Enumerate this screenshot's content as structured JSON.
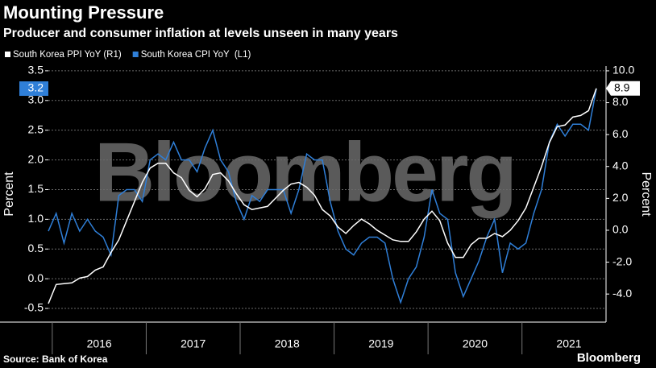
{
  "chart_data": {
    "type": "line",
    "title": "Mounting Pressure",
    "subtitle": "Producer and consumer inflation at levels unseen in many years",
    "ylabel": "Percent",
    "y2label": "Percent",
    "watermark": "Bloomberg",
    "source": "Source: Bank of Korea",
    "logo": "Bloomberg",
    "categories": [
      null,
      null,
      null,
      null,
      null,
      null,
      null,
      "2016",
      null,
      null,
      null,
      null,
      null,
      null,
      null,
      null,
      null,
      null,
      null,
      "2017",
      null,
      null,
      null,
      null,
      null,
      null,
      null,
      null,
      null,
      null,
      null,
      "2018",
      null,
      null,
      null,
      null,
      null,
      null,
      null,
      null,
      null,
      null,
      null,
      "2019",
      null,
      null,
      null,
      null,
      null,
      null,
      null,
      null,
      null,
      null,
      null,
      "2020",
      null,
      null,
      null,
      null,
      null,
      null,
      null,
      null,
      null,
      null,
      null,
      "2021",
      null,
      null,
      null
    ],
    "series": [
      {
        "name": "South Korea CPI YoY  (L1)",
        "color": "#2f7fd8",
        "axis": "y",
        "values": [
          0.8,
          1.1,
          0.6,
          1.1,
          0.8,
          1.0,
          0.8,
          0.7,
          0.4,
          1.4,
          1.5,
          1.5,
          1.3,
          2.0,
          2.1,
          2.0,
          2.3,
          2.0,
          2.0,
          1.8,
          2.2,
          2.5,
          2.0,
          1.8,
          1.3,
          1.0,
          1.4,
          1.3,
          1.5,
          1.5,
          1.5,
          1.1,
          1.5,
          2.1,
          2.0,
          2.0,
          1.3,
          0.8,
          0.5,
          0.4,
          0.6,
          0.7,
          0.7,
          0.6,
          0.0,
          -0.4,
          0.0,
          0.2,
          0.7,
          1.5,
          1.1,
          1.0,
          0.1,
          -0.3,
          0.0,
          0.3,
          0.7,
          1.0,
          0.1,
          0.6,
          0.5,
          0.6,
          1.1,
          1.5,
          2.3,
          2.6,
          2.4,
          2.6,
          2.6,
          2.5,
          3.2
        ]
      },
      {
        "name": "South Korea PPI YoY (R1)",
        "color": "#ffffff",
        "axis": "y2",
        "values": [
          -4.6,
          -3.4,
          -3.35,
          -3.3,
          -3.0,
          -2.9,
          -2.5,
          -2.3,
          -1.4,
          -0.6,
          0.6,
          1.8,
          3.0,
          3.9,
          4.2,
          4.2,
          3.6,
          3.3,
          2.5,
          2.1,
          2.6,
          3.5,
          3.6,
          3.1,
          2.3,
          1.6,
          1.3,
          1.4,
          1.5,
          2.0,
          2.5,
          2.9,
          3.0,
          2.7,
          2.2,
          1.3,
          0.9,
          0.2,
          -0.2,
          0.3,
          0.7,
          0.4,
          0.0,
          -0.3,
          -0.6,
          -0.7,
          -0.7,
          -0.1,
          0.7,
          1.2,
          0.6,
          -0.8,
          -1.7,
          -1.7,
          -0.9,
          -0.5,
          -0.5,
          -0.2,
          -0.4,
          0.0,
          0.6,
          1.4,
          2.7,
          4.0,
          5.5,
          6.5,
          6.6,
          7.1,
          7.2,
          7.5,
          8.9
        ]
      }
    ],
    "ylim": [
      -0.73,
      3.58
    ],
    "yticks": [
      -0.5,
      {
        "value": 0,
        "label": "0.0"
      },
      0.5,
      {
        "value": 1,
        "label": "1.0"
      },
      1.5,
      {
        "value": 2,
        "label": "2.0"
      },
      2.5,
      {
        "value": 3,
        "label": "3.0"
      },
      3.5
    ],
    "y2lim": [
      -5.76,
      10.3
    ],
    "y2ticks": [
      {
        "value": -4,
        "label": "-4.0"
      },
      {
        "value": -2,
        "label": "-2.0"
      },
      {
        "value": 0,
        "label": "0.0"
      },
      {
        "value": 2,
        "label": "2.0"
      },
      {
        "value": 4,
        "label": "4.0"
      },
      {
        "value": 6,
        "label": "6.0"
      },
      {
        "value": 8,
        "label": "8.0"
      },
      {
        "value": 10,
        "label": "10.0"
      }
    ],
    "grid": true
  }
}
